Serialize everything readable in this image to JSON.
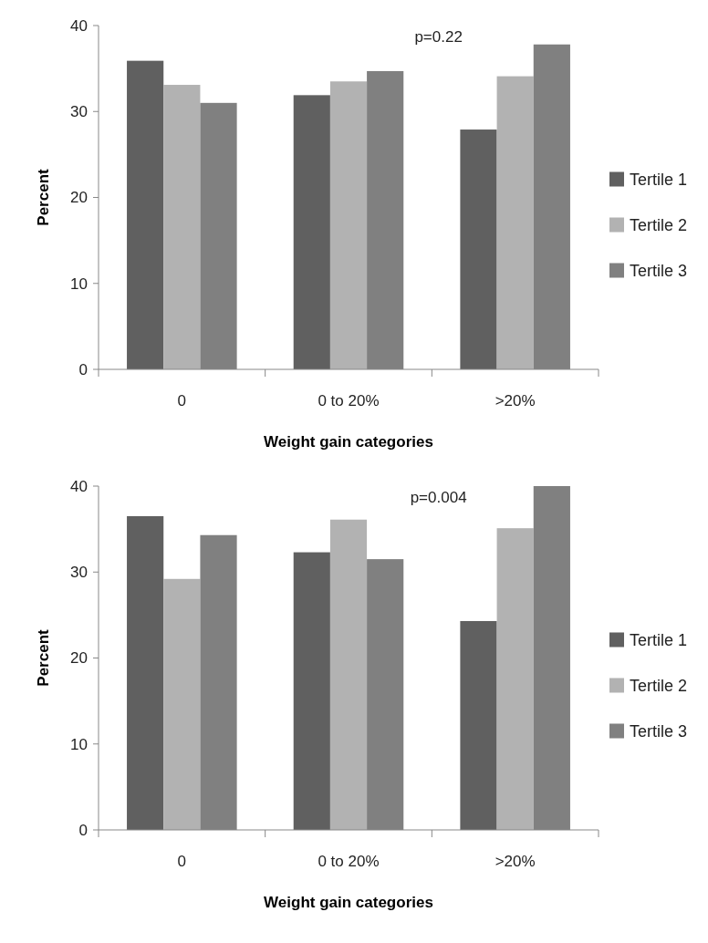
{
  "chart_data": [
    {
      "type": "bar",
      "categories": [
        "0",
        "0 to 20%",
        ">20%"
      ],
      "xlabel": "Weight gain categories",
      "ylabel": "Percent",
      "ylim": [
        0,
        40
      ],
      "yticks": [
        0,
        10,
        20,
        30,
        40
      ],
      "legend": "right",
      "annotations": [
        "p=0.22"
      ],
      "series": [
        {
          "name": "Tertile 1",
          "color": "#606060",
          "values": [
            35.9,
            31.9,
            27.9
          ]
        },
        {
          "name": "Tertile 2",
          "color": "#b2b2b2",
          "values": [
            33.1,
            33.5,
            34.1
          ]
        },
        {
          "name": "Tertile 3",
          "color": "#808080",
          "values": [
            31.0,
            34.7,
            37.8
          ]
        }
      ]
    },
    {
      "type": "bar",
      "categories": [
        "0",
        "0 to 20%",
        ">20%"
      ],
      "xlabel": "Weight gain categories",
      "ylabel": "Percent",
      "ylim": [
        0,
        40
      ],
      "yticks": [
        0,
        10,
        20,
        30,
        40
      ],
      "legend": "right",
      "annotations": [
        "p=0.004"
      ],
      "series": [
        {
          "name": "Tertile 1",
          "color": "#606060",
          "values": [
            36.5,
            32.3,
            24.3
          ]
        },
        {
          "name": "Tertile 2",
          "color": "#b2b2b2",
          "values": [
            29.2,
            36.1,
            35.1
          ]
        },
        {
          "name": "Tertile 3",
          "color": "#808080",
          "values": [
            34.3,
            31.5,
            40.0
          ]
        }
      ]
    }
  ]
}
